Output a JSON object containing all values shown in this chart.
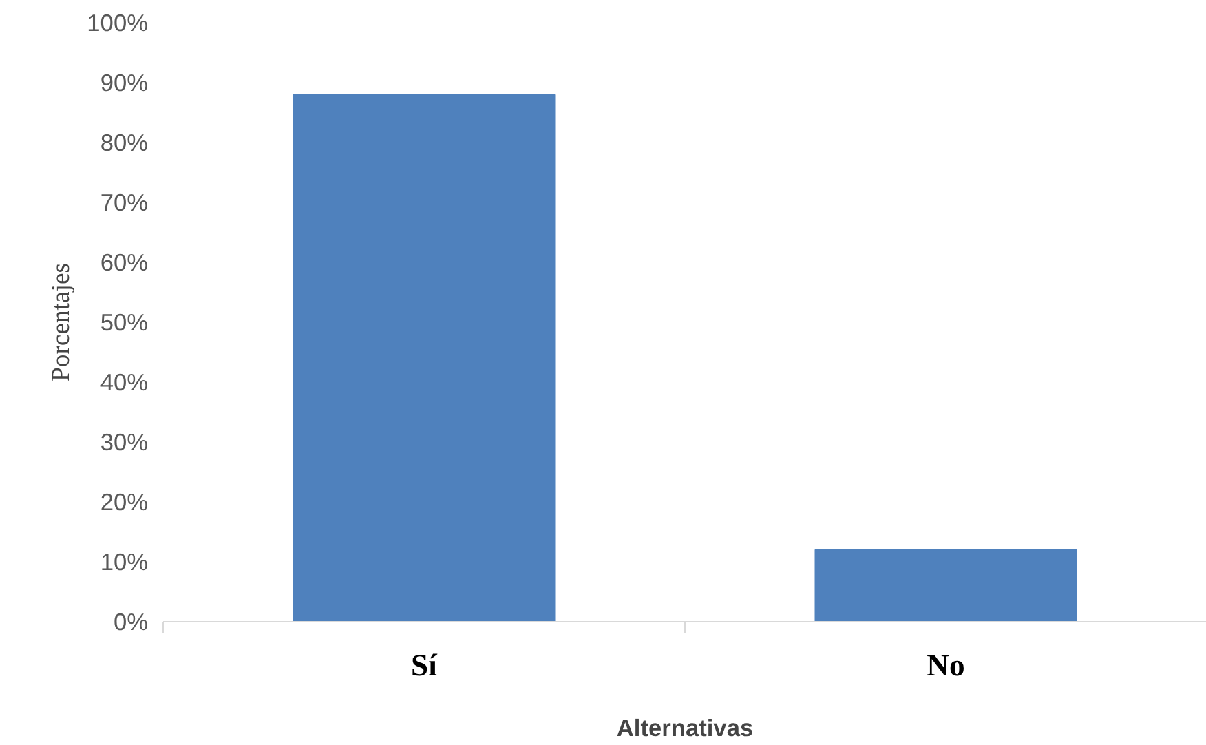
{
  "chart_data": {
    "type": "bar",
    "xlabel": "Alternativas",
    "ylabel": "Porcentajes",
    "categories": [
      "Sí",
      "No"
    ],
    "values": [
      88,
      12
    ],
    "color": "#4f81bd",
    "ylim": [
      0,
      100
    ],
    "yticks": [
      {
        "value": 0,
        "label": "0%"
      },
      {
        "value": 10,
        "label": "10%"
      },
      {
        "value": 20,
        "label": "20%"
      },
      {
        "value": 30,
        "label": "30%"
      },
      {
        "value": 40,
        "label": "40%"
      },
      {
        "value": 50,
        "label": "50%"
      },
      {
        "value": 60,
        "label": "60%"
      },
      {
        "value": 70,
        "label": "70%"
      },
      {
        "value": 80,
        "label": "80%"
      },
      {
        "value": 90,
        "label": "90%"
      },
      {
        "value": 100,
        "label": "100%"
      }
    ],
    "grid": false
  }
}
